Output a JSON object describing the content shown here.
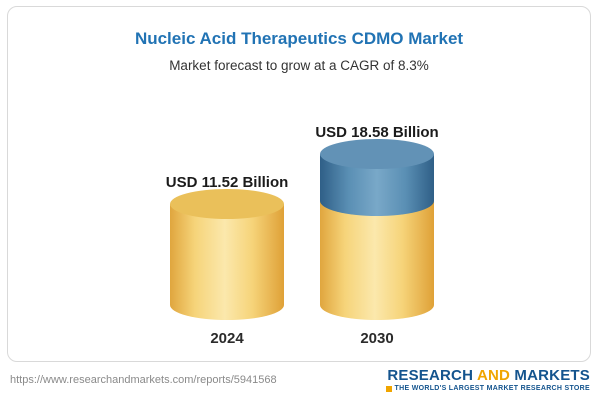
{
  "header": {
    "title": "Nucleic Acid Therapeutics CDMO Market",
    "subtitle": "Market forecast to grow at a CAGR of 8.3%"
  },
  "chart_data": {
    "type": "bar",
    "categories": [
      "2024",
      "2030"
    ],
    "values": [
      11.52,
      18.58
    ],
    "unit": "USD Billion",
    "data_labels": [
      "USD 11.52 Billion",
      "USD 18.58 Billion"
    ],
    "title": "Nucleic Acid Therapeutics CDMO Market",
    "subtitle": "Market forecast to grow at a CAGR of 8.3%",
    "xlabel": "",
    "ylabel": "",
    "legend": "none",
    "grid": false,
    "bar_style": "3d-cylinder",
    "colors": {
      "bar_2024": "#f6d47a",
      "bar_2030_bottom": "#f6d47a",
      "bar_2030_top": "#4a7ea6",
      "title_accent": "#2173b4"
    }
  },
  "bars": [
    {
      "value_label": "USD 11.52 Billion",
      "year": "2024"
    },
    {
      "value_label": "USD 18.58 Billion",
      "year": "2030"
    }
  ],
  "footer": {
    "url": "https://www.researchandmarkets.com/reports/5941568",
    "logo": {
      "word1": "RESEARCH",
      "word2": "AND",
      "word3": "MARKETS",
      "tagline": "THE WORLD'S LARGEST MARKET RESEARCH STORE"
    }
  }
}
